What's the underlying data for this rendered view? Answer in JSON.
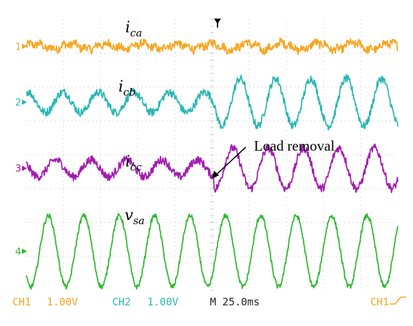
{
  "chart_data": {
    "type": "line",
    "title": "",
    "xlabel": "",
    "ylabel": "",
    "grid": true,
    "grid_divisions": {
      "x": 10,
      "y": 8
    },
    "series": [
      {
        "name": "i_ca",
        "label_main": "i",
        "label_sub": "ca",
        "channel": "1",
        "color": "#f5a623",
        "cycles": 10.5,
        "amp_before": 0.07,
        "amp_after": 0.1,
        "noise": 0.12,
        "center_div": 0.8
      },
      {
        "name": "i_cb",
        "label_main": "i",
        "label_sub": "cb",
        "channel": "2",
        "color": "#2ab7b3",
        "cycles": 10.5,
        "amp_before": 0.3,
        "amp_after": 0.7,
        "noise": 0.12,
        "center_div": 2.45
      },
      {
        "name": "i_cc",
        "label_main": "i",
        "label_sub": "cc",
        "channel": "3",
        "color": "#a21caf",
        "cycles": 10.5,
        "amp_before": 0.25,
        "amp_after": 0.6,
        "noise": 0.12,
        "center_div": 4.4
      },
      {
        "name": "v_sa",
        "label_main": "v",
        "label_sub": "sa",
        "channel": "4",
        "color": "#2db82d",
        "cycles": 10.5,
        "amp_before": 1.05,
        "amp_after": 1.05,
        "noise": 0.07,
        "center_div": 6.85
      }
    ],
    "event": {
      "label": "Load removal",
      "time_fraction": 0.505
    }
  },
  "status_bar": {
    "ch1": "CH1",
    "ch1_scale": "1.00V",
    "ch2": "CH2",
    "ch2_scale": "1.00V",
    "timebase": "M 25.0ms",
    "trigger_source": "CH1",
    "trigger_icon": "rising-edge-icon",
    "colors": {
      "ch1": "#f5a623",
      "ch2": "#2ab7b3",
      "text": "#222222"
    }
  }
}
